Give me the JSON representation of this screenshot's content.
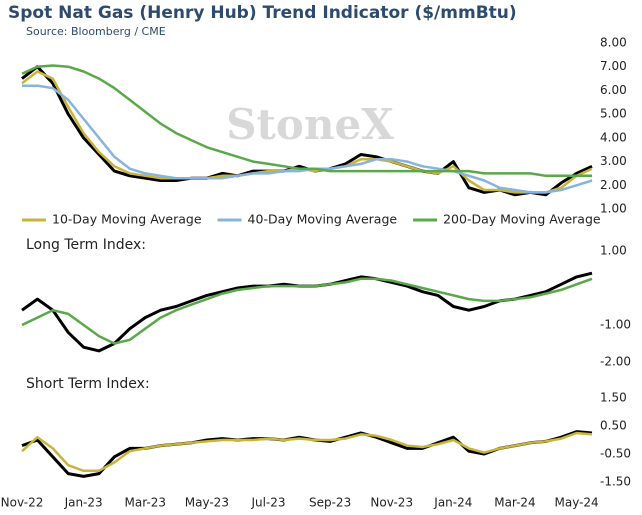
{
  "chart_data": [
    {
      "type": "line",
      "title": "Spot Nat Gas (Henry Hub) Trend Indicator ($/mmBtu)",
      "subtitle": "Source: Bloomberg / CME",
      "watermark": "StoneX",
      "ylim": [
        1,
        8
      ],
      "yticks": [
        {
          "value": 1,
          "label": "1.00"
        },
        {
          "value": 2,
          "label": "2.00"
        },
        {
          "value": 3,
          "label": "3.00"
        },
        {
          "value": 4,
          "label": "4.00"
        },
        {
          "value": 5,
          "label": "5.00"
        },
        {
          "value": 6,
          "label": "6.00"
        },
        {
          "value": 7,
          "label": "7.00"
        },
        {
          "value": 8,
          "label": "8.00"
        }
      ],
      "series": [
        {
          "color": "#000000",
          "values": [
            6.5,
            7.0,
            6.3,
            5.0,
            4.0,
            3.3,
            2.6,
            2.4,
            2.3,
            2.2,
            2.2,
            2.3,
            2.3,
            2.5,
            2.4,
            2.6,
            2.6,
            2.6,
            2.8,
            2.6,
            2.7,
            2.9,
            3.3,
            3.2,
            3.0,
            2.8,
            2.6,
            2.5,
            3.0,
            1.9,
            1.7,
            1.8,
            1.6,
            1.7,
            1.6,
            2.1,
            2.5,
            2.8
          ]
        },
        {
          "name": "10-Day Moving Average",
          "color": "#c9b43a",
          "values": [
            6.3,
            6.8,
            6.5,
            5.3,
            4.2,
            3.4,
            2.8,
            2.5,
            2.4,
            2.3,
            2.3,
            2.3,
            2.3,
            2.4,
            2.4,
            2.5,
            2.6,
            2.6,
            2.7,
            2.6,
            2.7,
            2.8,
            3.1,
            3.1,
            3.0,
            2.8,
            2.6,
            2.5,
            2.8,
            2.2,
            1.8,
            1.8,
            1.7,
            1.7,
            1.7,
            1.9,
            2.4,
            2.7
          ]
        },
        {
          "name": "40-Day Moving Average",
          "color": "#86b4dc",
          "values": [
            6.2,
            6.2,
            6.1,
            5.6,
            4.8,
            4.0,
            3.2,
            2.7,
            2.5,
            2.4,
            2.3,
            2.3,
            2.3,
            2.3,
            2.4,
            2.5,
            2.5,
            2.6,
            2.6,
            2.7,
            2.7,
            2.8,
            2.9,
            3.1,
            3.1,
            3.0,
            2.8,
            2.7,
            2.6,
            2.4,
            2.2,
            1.9,
            1.8,
            1.7,
            1.7,
            1.8,
            2.0,
            2.2
          ]
        },
        {
          "name": "200-Day Moving Average",
          "color": "#5aa84a",
          "values": [
            6.7,
            7.0,
            7.05,
            7.0,
            6.8,
            6.5,
            6.1,
            5.6,
            5.1,
            4.6,
            4.2,
            3.9,
            3.6,
            3.4,
            3.2,
            3.0,
            2.9,
            2.8,
            2.7,
            2.7,
            2.6,
            2.6,
            2.6,
            2.6,
            2.6,
            2.6,
            2.6,
            2.6,
            2.6,
            2.6,
            2.5,
            2.5,
            2.5,
            2.5,
            2.4,
            2.4,
            2.4,
            2.4
          ]
        }
      ]
    },
    {
      "type": "line",
      "title": "Long Term Index:",
      "ylim": [
        -2,
        1
      ],
      "yticks": [
        {
          "value": -2,
          "label": "-2.00"
        },
        {
          "value": -1,
          "label": "-1.00"
        },
        {
          "value": 1,
          "label": "1.00"
        }
      ],
      "series": [
        {
          "color": "#000000",
          "values": [
            -0.6,
            -0.3,
            -0.6,
            -1.2,
            -1.6,
            -1.7,
            -1.5,
            -1.1,
            -0.8,
            -0.6,
            -0.5,
            -0.35,
            -0.2,
            -0.1,
            0,
            0.05,
            0.05,
            0.1,
            0.05,
            0.05,
            0.1,
            0.2,
            0.3,
            0.25,
            0.15,
            0.05,
            -0.1,
            -0.2,
            -0.5,
            -0.6,
            -0.5,
            -0.35,
            -0.3,
            -0.2,
            -0.1,
            0.1,
            0.3,
            0.4
          ]
        },
        {
          "color": "#5aa84a",
          "values": [
            -1.0,
            -0.8,
            -0.6,
            -0.7,
            -1.0,
            -1.3,
            -1.5,
            -1.4,
            -1.1,
            -0.8,
            -0.6,
            -0.45,
            -0.3,
            -0.15,
            -0.05,
            0,
            0.05,
            0.05,
            0.05,
            0.05,
            0.1,
            0.15,
            0.25,
            0.25,
            0.2,
            0.1,
            0,
            -0.1,
            -0.2,
            -0.3,
            -0.35,
            -0.35,
            -0.3,
            -0.25,
            -0.15,
            -0.05,
            0.1,
            0.25
          ]
        }
      ]
    },
    {
      "type": "line",
      "title": "Short Term Index:",
      "ylim": [
        -1.5,
        1.5
      ],
      "yticks": [
        {
          "value": -1.5,
          "label": "-1.50"
        },
        {
          "value": -0.5,
          "label": "-0.50"
        },
        {
          "value": 0.5,
          "label": "0.50"
        },
        {
          "value": 1.5,
          "label": "1.50"
        }
      ],
      "categories": [
        "Nov-22",
        null,
        null,
        null,
        "Jan-23",
        null,
        null,
        null,
        "Mar-23",
        null,
        null,
        null,
        "May-23",
        null,
        null,
        null,
        "Jul-23",
        null,
        null,
        null,
        "Sep-23",
        null,
        null,
        null,
        "Nov-23",
        null,
        null,
        null,
        "Jan-24",
        null,
        null,
        null,
        "Mar-24",
        null,
        null,
        null,
        "May-24",
        null
      ],
      "series": [
        {
          "color": "#000000",
          "values": [
            -0.2,
            0.0,
            -0.6,
            -1.2,
            -1.3,
            -1.2,
            -0.6,
            -0.3,
            -0.3,
            -0.2,
            -0.15,
            -0.1,
            0.0,
            0.05,
            0.0,
            0.05,
            0.05,
            0.0,
            0.1,
            0.0,
            -0.05,
            0.1,
            0.25,
            0.1,
            -0.1,
            -0.3,
            -0.3,
            -0.1,
            0.1,
            -0.4,
            -0.5,
            -0.3,
            -0.2,
            -0.1,
            -0.05,
            0.1,
            0.3,
            0.25
          ]
        },
        {
          "color": "#c9b43a",
          "values": [
            -0.4,
            0.1,
            -0.3,
            -0.9,
            -1.1,
            -1.1,
            -0.8,
            -0.4,
            -0.3,
            -0.2,
            -0.15,
            -0.1,
            -0.05,
            0.0,
            0.0,
            0.0,
            0.05,
            0.0,
            0.05,
            0.0,
            0.0,
            0.05,
            0.2,
            0.15,
            0.0,
            -0.2,
            -0.25,
            -0.15,
            0.0,
            -0.3,
            -0.45,
            -0.3,
            -0.2,
            -0.1,
            -0.05,
            0.05,
            0.25,
            0.2
          ]
        }
      ]
    }
  ]
}
